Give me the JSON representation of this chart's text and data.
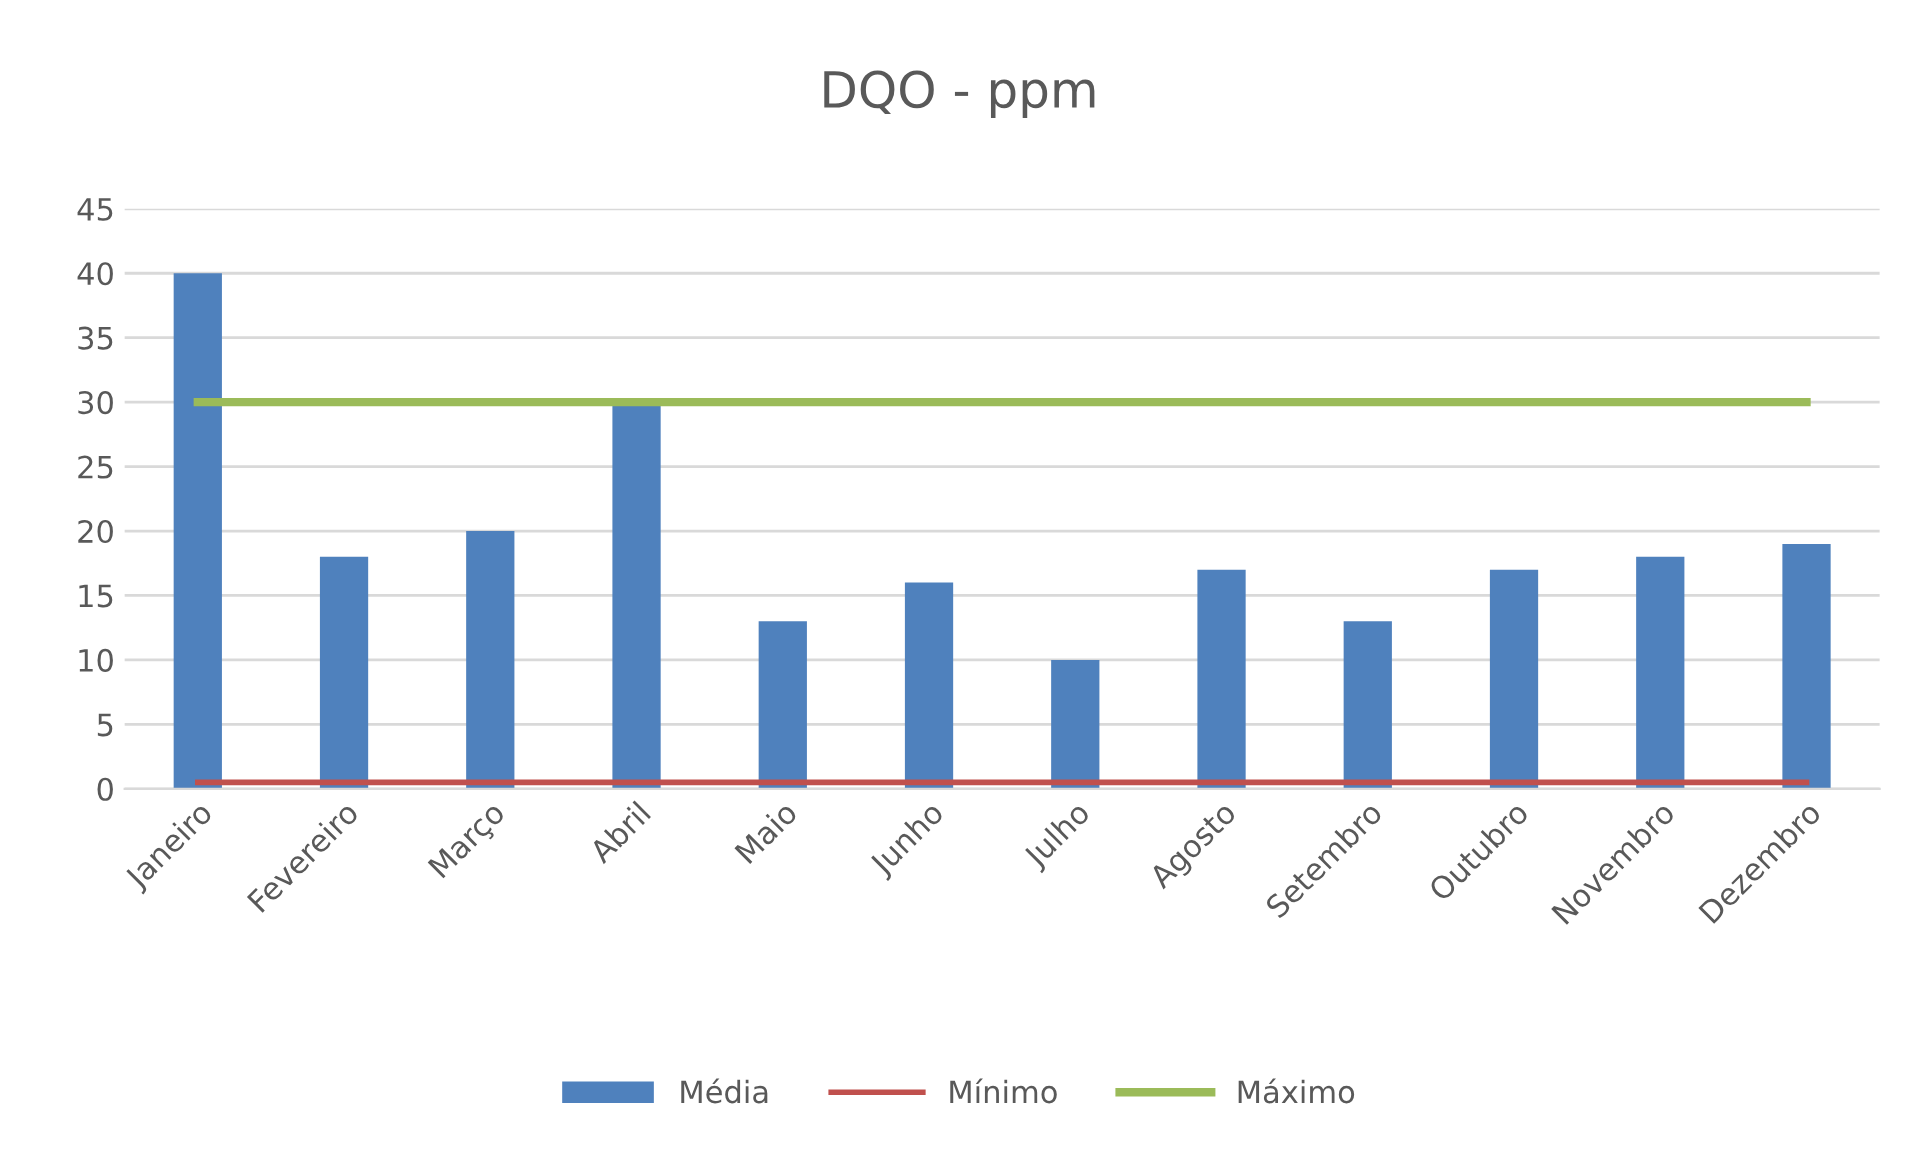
{
  "chart_data": {
    "type": "bar",
    "title": "DQO - ppm",
    "categories": [
      "Janeiro",
      "Fevereiro",
      "Março",
      "Abril",
      "Maio",
      "Junho",
      "Julho",
      "Agosto",
      "Setembro",
      "Outubro",
      "Novembro",
      "Dezembro"
    ],
    "series": [
      {
        "name": "Média",
        "color": "#4f81bd",
        "values": [
          40,
          18,
          20,
          30,
          13,
          16,
          10,
          17,
          13,
          17,
          18,
          19
        ]
      },
      {
        "name": "Mínimo",
        "type": "line",
        "color": "#c0504d",
        "values": [
          0.5,
          0.5,
          0.5,
          0.5,
          0.5,
          0.5,
          0.5,
          0.5,
          0.5,
          0.5,
          0.5,
          0.5
        ]
      },
      {
        "name": "Máximo",
        "type": "line",
        "color": "#9bbb59",
        "values": [
          30,
          30,
          30,
          30,
          30,
          30,
          30,
          30,
          30,
          30,
          30,
          30
        ]
      }
    ],
    "ylim": [
      0,
      45
    ],
    "yticks": [
      0,
      5,
      10,
      15,
      20,
      25,
      30,
      35,
      40,
      45
    ],
    "grid": "y",
    "legend": "bottom",
    "marker": "none",
    "line_style": "solid"
  }
}
